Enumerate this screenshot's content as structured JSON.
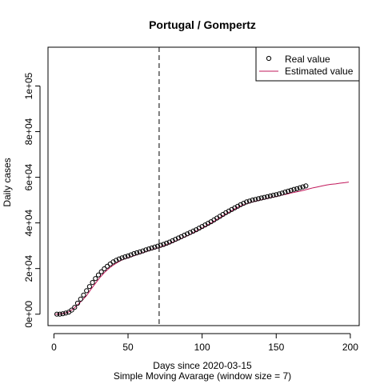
{
  "chart_data": {
    "type": "scatter",
    "title": "Portugal / Gompertz",
    "xlabel": "Days since 2020-03-15",
    "xlabel2": "Simple Moving Avarage (window size = 7)",
    "ylabel": "Daily cases",
    "xlim": [
      -4,
      206
    ],
    "ylim": [
      -5000,
      117000
    ],
    "x_ticks": [
      0,
      50,
      100,
      150,
      200
    ],
    "x_tick_labels": [
      "0",
      "50",
      "100",
      "150",
      "200"
    ],
    "y_ticks": [
      0,
      20000,
      40000,
      60000,
      80000,
      100000
    ],
    "y_tick_labels": [
      "0e+00",
      "2e+04",
      "4e+04",
      "6e+04",
      "8e+04",
      "1e+05"
    ],
    "vline_x": 71,
    "legend_position": "top-right",
    "series": [
      {
        "name": "Real value",
        "kind": "points",
        "color": "#000000",
        "x": [
          2,
          4,
          6,
          8,
          10,
          12,
          14,
          16,
          18,
          20,
          22,
          24,
          26,
          28,
          30,
          32,
          34,
          36,
          38,
          40,
          42,
          44,
          46,
          48,
          50,
          52,
          54,
          56,
          58,
          60,
          62,
          64,
          66,
          68,
          70,
          72,
          74,
          76,
          78,
          80,
          82,
          84,
          86,
          88,
          90,
          92,
          94,
          96,
          98,
          100,
          102,
          104,
          106,
          108,
          110,
          112,
          114,
          116,
          118,
          120,
          122,
          124,
          126,
          128,
          130,
          132,
          134,
          136,
          138,
          140,
          142,
          144,
          146,
          148,
          150,
          152,
          154,
          156,
          158,
          160,
          162,
          164,
          166,
          168,
          170
        ],
        "y": [
          0,
          0,
          200,
          500,
          900,
          1800,
          3000,
          4800,
          6600,
          8400,
          10300,
          12100,
          13900,
          15600,
          17200,
          18600,
          19900,
          21000,
          22000,
          22900,
          23600,
          24200,
          24700,
          25100,
          25500,
          26000,
          26500,
          26900,
          27300,
          27700,
          28200,
          28600,
          29000,
          29400,
          29800,
          30200,
          30600,
          31100,
          31600,
          32200,
          32800,
          33400,
          34000,
          34600,
          35200,
          35800,
          36400,
          37000,
          37700,
          38400,
          39100,
          39800,
          40500,
          41300,
          42100,
          42900,
          43700,
          44500,
          45200,
          45900,
          46600,
          47300,
          48000,
          48600,
          49200,
          49600,
          50000,
          50300,
          50600,
          50900,
          51200,
          51500,
          51800,
          52100,
          52400,
          52700,
          53100,
          53500,
          53900,
          54300,
          54700,
          55000,
          55400,
          55800,
          56200
        ]
      },
      {
        "name": "Estimated value",
        "kind": "line",
        "color": "#c2185b",
        "x": [
          1,
          4,
          7,
          10,
          13,
          16,
          19,
          22,
          25,
          28,
          31,
          34,
          37,
          40,
          43,
          46,
          49,
          52,
          55,
          58,
          61,
          64,
          67,
          70,
          73,
          76,
          79,
          82,
          85,
          88,
          91,
          94,
          97,
          100,
          103,
          106,
          109,
          112,
          115,
          118,
          121,
          124,
          127,
          130,
          133,
          136,
          139,
          142,
          145,
          148,
          151,
          154,
          157,
          160,
          163,
          166,
          169,
          172,
          175,
          178,
          181,
          184,
          187,
          190,
          193,
          196,
          199
        ],
        "y": [
          0,
          100,
          400,
          1000,
          2300,
          4100,
          6000,
          8100,
          10900,
          13500,
          16000,
          18200,
          20000,
          21500,
          22700,
          23800,
          24500,
          25200,
          25800,
          26500,
          27200,
          27800,
          28400,
          29000,
          29700,
          30400,
          31200,
          32000,
          32900,
          33800,
          34700,
          35700,
          36700,
          37700,
          38800,
          39900,
          41100,
          42300,
          43500,
          44600,
          45700,
          46800,
          47700,
          48400,
          49000,
          49500,
          50000,
          50400,
          50900,
          51300,
          51700,
          52200,
          52600,
          53100,
          53500,
          53900,
          54400,
          54900,
          55400,
          55800,
          56200,
          56600,
          56900,
          57100,
          57400,
          57600,
          57900
        ]
      }
    ]
  }
}
